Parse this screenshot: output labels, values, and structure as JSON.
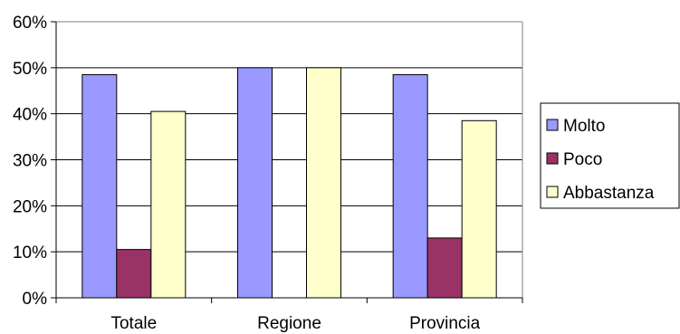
{
  "chart_data": {
    "type": "bar",
    "categories": [
      "Totale",
      "Regione",
      "Provincia"
    ],
    "series": [
      {
        "name": "Molto",
        "color": "#9999ff",
        "values": [
          48.5,
          50,
          48.5
        ]
      },
      {
        "name": "Poco",
        "color": "#993366",
        "values": [
          10.5,
          0,
          13
        ]
      },
      {
        "name": "Abbastanza",
        "color": "#ffffcc",
        "values": [
          40.5,
          50,
          38.5
        ]
      }
    ],
    "ylim": [
      0,
      60
    ],
    "yticks": [
      "0%",
      "10%",
      "20%",
      "30%",
      "40%",
      "50%",
      "60%"
    ],
    "grid": true,
    "legend": "right"
  }
}
